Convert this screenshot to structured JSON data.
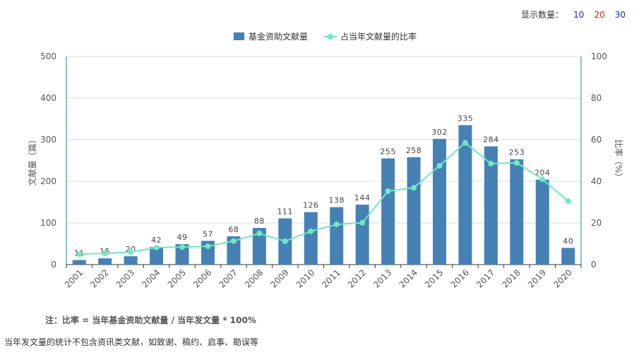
{
  "controls": {
    "label": "显示数量：",
    "options": [
      "10",
      "20",
      "30"
    ]
  },
  "chart_data": {
    "type": "bar",
    "categories": [
      "2001",
      "2002",
      "2003",
      "2004",
      "2005",
      "2006",
      "2007",
      "2008",
      "2009",
      "2010",
      "2011",
      "2012",
      "2013",
      "2014",
      "2015",
      "2016",
      "2017",
      "2018",
      "2019",
      "2020"
    ],
    "series": [
      {
        "name": "基金资助文献量",
        "type": "bar",
        "axis": "left",
        "color": "#4581b5",
        "values": [
          11,
          15,
          20,
          42,
          49,
          57,
          68,
          88,
          111,
          126,
          138,
          144,
          255,
          258,
          302,
          335,
          284,
          253,
          204,
          40
        ]
      },
      {
        "name": "占当年文献量的比率",
        "type": "line",
        "axis": "right",
        "color": "#6ee9c0",
        "values": [
          5.0,
          5.4,
          6.0,
          8.2,
          8.4,
          8.8,
          11.3,
          15.0,
          11.2,
          16.0,
          19.3,
          20.1,
          35.3,
          36.9,
          47.5,
          58.5,
          48.5,
          48.9,
          41.0,
          30.5
        ]
      }
    ],
    "ylabel": "文献量（篇）",
    "y2label": "比率（%）",
    "ylim": [
      0,
      500
    ],
    "y2lim": [
      0,
      100
    ],
    "yticks": [
      0,
      100,
      200,
      300,
      400,
      500
    ],
    "y2ticks": [
      0,
      20,
      40,
      60,
      80,
      100
    ],
    "grid": true,
    "legend": "top-center"
  },
  "notes": {
    "formula": "注：比率 = 当年基金资助文献量 / 当年发文量 * 100%",
    "remark": "当年发文量的统计不包含资讯类文献，如致谢、稿约、启事、勘误等"
  }
}
